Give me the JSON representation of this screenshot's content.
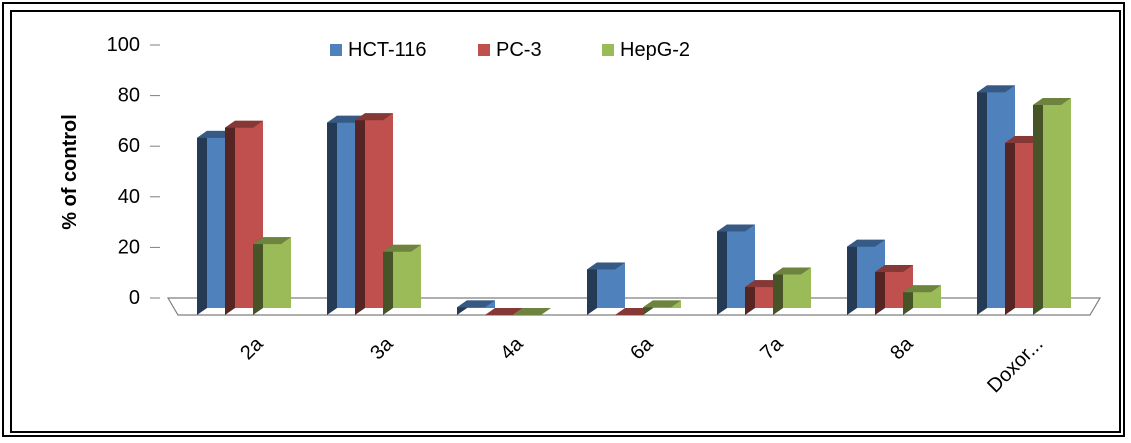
{
  "chart_data": {
    "type": "bar",
    "title": "",
    "xlabel": "",
    "ylabel": "% of control",
    "ylim": [
      0,
      100
    ],
    "yticks": [
      0,
      20,
      40,
      60,
      80,
      100
    ],
    "grid": false,
    "legend_position": "top-center",
    "categories": [
      "2a",
      "3a",
      "4a",
      "6a",
      "7a",
      "8a",
      "Doxor..."
    ],
    "series": [
      {
        "name": "HCT-116",
        "color": "#4F81BD",
        "values": [
          70,
          76,
          3,
          18,
          33,
          27,
          88
        ]
      },
      {
        "name": "PC-3",
        "color": "#C0504D",
        "values": [
          74,
          77,
          0,
          0,
          11,
          17,
          68
        ]
      },
      {
        "name": "HepG-2",
        "color": "#9BBB59",
        "values": [
          28,
          25,
          0,
          3,
          16,
          9,
          83
        ]
      }
    ]
  }
}
